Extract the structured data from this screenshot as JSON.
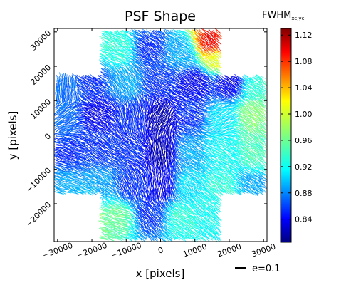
{
  "chart_data": {
    "type": "quiver",
    "title": "PSF Shape",
    "xlabel": "x [pixels]",
    "ylabel": "y [pixels]",
    "xlim": [
      -31000,
      31000
    ],
    "ylim": [
      -31000,
      31000
    ],
    "x_ticks": [
      -30000,
      -20000,
      -10000,
      0,
      10000,
      20000,
      30000
    ],
    "x_tick_labels": [
      "−30000",
      "−20000",
      "−10000",
      "0",
      "10000",
      "20000",
      "30000"
    ],
    "y_ticks": [
      -20000,
      -10000,
      0,
      10000,
      20000,
      30000
    ],
    "y_tick_labels": [
      "−20000",
      "−10000",
      "0",
      "10000",
      "20000",
      "30000"
    ],
    "grid": false,
    "colorbar": {
      "label_main": "FWHM",
      "label_sub": "xc,yc",
      "range": [
        0.805,
        1.13
      ],
      "ticks": [
        0.84,
        0.88,
        0.92,
        0.96,
        1.0,
        1.04,
        1.08,
        1.12
      ],
      "tick_labels": [
        "0.84",
        "0.88",
        "0.92",
        "0.96",
        "1.00",
        "1.04",
        "1.08",
        "1.12"
      ],
      "colormap": "jet"
    },
    "legend": {
      "label": "e=0.1",
      "position": "below-right"
    },
    "patches": [
      {
        "x": -22000,
        "y": 24000,
        "angle": 150,
        "fwhm": 0.96
      },
      {
        "x": -12000,
        "y": 25000,
        "angle": 155,
        "fwhm": 0.94
      },
      {
        "x": -3000,
        "y": 25000,
        "angle": 145,
        "fwhm": 0.86
      },
      {
        "x": 6000,
        "y": 24000,
        "angle": 150,
        "fwhm": 0.9
      },
      {
        "x": 15000,
        "y": 27000,
        "angle": 135,
        "fwhm": 1.09
      },
      {
        "x": 17000,
        "y": 22000,
        "angle": 140,
        "fwhm": 1.0
      },
      {
        "x": -28000,
        "y": 14000,
        "angle": 90,
        "fwhm": 0.88
      },
      {
        "x": -20000,
        "y": 16000,
        "angle": 150,
        "fwhm": 0.86
      },
      {
        "x": -10000,
        "y": 15000,
        "angle": 120,
        "fwhm": 0.9
      },
      {
        "x": 0,
        "y": 15000,
        "angle": 150,
        "fwhm": 0.86
      },
      {
        "x": 10000,
        "y": 15000,
        "angle": 150,
        "fwhm": 0.84
      },
      {
        "x": 20000,
        "y": 15000,
        "angle": 145,
        "fwhm": 0.84
      },
      {
        "x": 28000,
        "y": 14000,
        "angle": 140,
        "fwhm": 0.94
      },
      {
        "x": -28000,
        "y": 5000,
        "angle": 30,
        "fwhm": 0.88
      },
      {
        "x": -18000,
        "y": 6000,
        "angle": 150,
        "fwhm": 0.84
      },
      {
        "x": -8000,
        "y": 5000,
        "angle": 100,
        "fwhm": 0.86
      },
      {
        "x": 0,
        "y": 5000,
        "angle": 60,
        "fwhm": 0.82
      },
      {
        "x": 9000,
        "y": 6000,
        "angle": 150,
        "fwhm": 0.86
      },
      {
        "x": 18000,
        "y": 5000,
        "angle": 30,
        "fwhm": 0.92
      },
      {
        "x": 27000,
        "y": 6000,
        "angle": 140,
        "fwhm": 0.97
      },
      {
        "x": -27000,
        "y": -5000,
        "angle": 160,
        "fwhm": 0.86
      },
      {
        "x": -18000,
        "y": -4000,
        "angle": 145,
        "fwhm": 0.86
      },
      {
        "x": -8000,
        "y": -5000,
        "angle": 150,
        "fwhm": 0.86
      },
      {
        "x": 0,
        "y": -5000,
        "angle": 90,
        "fwhm": 0.82
      },
      {
        "x": 9000,
        "y": -5000,
        "angle": 150,
        "fwhm": 0.9
      },
      {
        "x": 18000,
        "y": -5000,
        "angle": 150,
        "fwhm": 0.93
      },
      {
        "x": 28000,
        "y": -5000,
        "angle": 140,
        "fwhm": 0.95
      },
      {
        "x": -27000,
        "y": -15000,
        "angle": 160,
        "fwhm": 0.9
      },
      {
        "x": -18000,
        "y": -15000,
        "angle": 150,
        "fwhm": 0.9
      },
      {
        "x": -8000,
        "y": -15000,
        "angle": 110,
        "fwhm": 0.86
      },
      {
        "x": 0,
        "y": -15000,
        "angle": 90,
        "fwhm": 0.84
      },
      {
        "x": 9000,
        "y": -15000,
        "angle": 140,
        "fwhm": 0.92
      },
      {
        "x": 18000,
        "y": -15000,
        "angle": 140,
        "fwhm": 0.94
      },
      {
        "x": 27000,
        "y": -15000,
        "angle": 150,
        "fwhm": 0.9
      },
      {
        "x": -22000,
        "y": -23000,
        "angle": 170,
        "fwhm": 1.0
      },
      {
        "x": -12000,
        "y": -24000,
        "angle": 160,
        "fwhm": 0.96
      },
      {
        "x": -3000,
        "y": -23000,
        "angle": 130,
        "fwhm": 0.86
      },
      {
        "x": 6000,
        "y": -24000,
        "angle": 150,
        "fwhm": 0.94
      },
      {
        "x": 14000,
        "y": -23000,
        "angle": 140,
        "fwhm": 0.93
      }
    ]
  }
}
